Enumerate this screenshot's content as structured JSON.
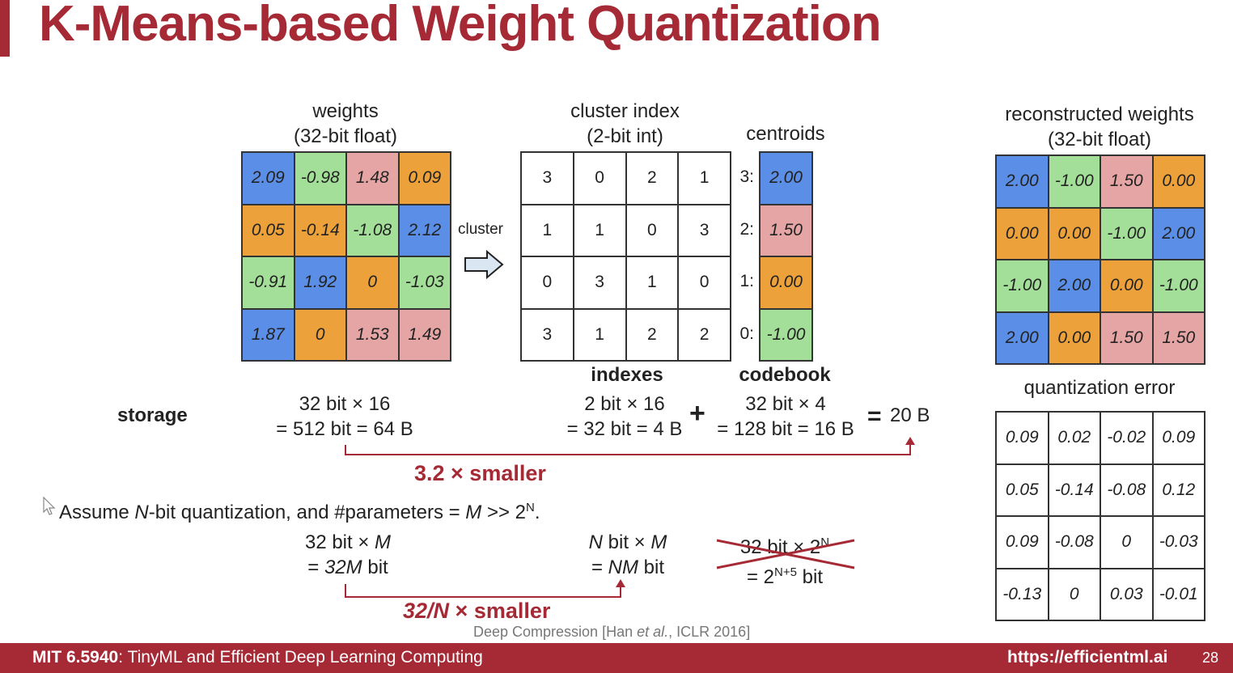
{
  "title": "K-Means-based Weight Quantization",
  "weights": {
    "title_line1": "weights",
    "title_line2": "(32-bit float)",
    "cells": [
      {
        "v": "2.09",
        "c": "blue"
      },
      {
        "v": "-0.98",
        "c": "green"
      },
      {
        "v": "1.48",
        "c": "pink"
      },
      {
        "v": "0.09",
        "c": "orange"
      },
      {
        "v": "0.05",
        "c": "orange"
      },
      {
        "v": "-0.14",
        "c": "orange"
      },
      {
        "v": "-1.08",
        "c": "green"
      },
      {
        "v": "2.12",
        "c": "blue"
      },
      {
        "v": "-0.91",
        "c": "green"
      },
      {
        "v": "1.92",
        "c": "blue"
      },
      {
        "v": "0",
        "c": "orange"
      },
      {
        "v": "-1.03",
        "c": "green"
      },
      {
        "v": "1.87",
        "c": "blue"
      },
      {
        "v": "0",
        "c": "orange"
      },
      {
        "v": "1.53",
        "c": "pink"
      },
      {
        "v": "1.49",
        "c": "pink"
      }
    ]
  },
  "cluster_label": "cluster",
  "cluster_index": {
    "title_line1": "cluster index",
    "title_line2": "(2-bit int)",
    "cells": [
      "3",
      "0",
      "2",
      "1",
      "1",
      "1",
      "0",
      "3",
      "0",
      "3",
      "1",
      "0",
      "3",
      "1",
      "2",
      "2"
    ]
  },
  "centroids": {
    "title": "centroids",
    "items": [
      {
        "key": "3:",
        "v": "2.00",
        "c": "blue"
      },
      {
        "key": "2:",
        "v": "1.50",
        "c": "pink"
      },
      {
        "key": "1:",
        "v": "0.00",
        "c": "orange"
      },
      {
        "key": "0:",
        "v": "-1.00",
        "c": "green"
      }
    ]
  },
  "indexes_label": "indexes",
  "codebook_label": "codebook",
  "reconstructed": {
    "title_line1": "reconstructed weights",
    "title_line2": "(32-bit float)",
    "cells": [
      {
        "v": "2.00",
        "c": "blue"
      },
      {
        "v": "-1.00",
        "c": "green"
      },
      {
        "v": "1.50",
        "c": "pink"
      },
      {
        "v": "0.00",
        "c": "orange"
      },
      {
        "v": "0.00",
        "c": "orange"
      },
      {
        "v": "0.00",
        "c": "orange"
      },
      {
        "v": "-1.00",
        "c": "green"
      },
      {
        "v": "2.00",
        "c": "blue"
      },
      {
        "v": "-1.00",
        "c": "green"
      },
      {
        "v": "2.00",
        "c": "blue"
      },
      {
        "v": "0.00",
        "c": "orange"
      },
      {
        "v": "-1.00",
        "c": "green"
      },
      {
        "v": "2.00",
        "c": "blue"
      },
      {
        "v": "0.00",
        "c": "orange"
      },
      {
        "v": "1.50",
        "c": "pink"
      },
      {
        "v": "1.50",
        "c": "pink"
      }
    ]
  },
  "quant_error": {
    "title": "quantization error",
    "cells": [
      "0.09",
      "0.02",
      "-0.02",
      "0.09",
      "0.05",
      "-0.14",
      "-0.08",
      "0.12",
      "0.09",
      "-0.08",
      "0",
      "-0.03",
      "-0.13",
      "0",
      "0.03",
      "-0.01"
    ]
  },
  "storage": {
    "label": "storage",
    "weights_line1": "32 bit × 16",
    "weights_line2": "= 512 bit = 64 B",
    "indexes_line1": "2 bit × 16",
    "indexes_line2": "= 32 bit = 4 B",
    "plus": "+",
    "codebook_line1": "32 bit × 4",
    "codebook_line2": "= 128 bit = 16 B",
    "equals": "=",
    "total": "20 B",
    "smaller": "3.2 × smaller"
  },
  "assume": {
    "prefix": "Assume ",
    "n": "N",
    "mid": "-bit quantization, and #parameters = ",
    "m": "M",
    "suffix": " >> 2",
    "sup": "N",
    "end": "."
  },
  "general": {
    "a_line1_pre": "32 bit × ",
    "a_line1_it": "M",
    "a_line2_pre": "= ",
    "a_line2_it": "32M",
    "a_line2_post": " bit",
    "b_line1_it1": "N",
    "b_line1_mid": " bit × ",
    "b_line1_it2": "M",
    "b_line2_pre": "= ",
    "b_line2_it": "NM",
    "b_line2_post": " bit",
    "c_line1": "32 bit × 2",
    "c_line1_sup": "N",
    "c_line2": "= 2",
    "c_line2_sup": "N+5",
    "c_line2_post": " bit",
    "smaller_it": "32/N",
    "smaller_rest": " × smaller"
  },
  "citation": {
    "pre": "Deep Compression [Han ",
    "it": "et al.",
    "post": ", ICLR 2016]"
  },
  "footer": {
    "course_bold": "MIT 6.5940",
    "course_rest": ": TinyML and Efficient Deep Learning Computing",
    "url": "https://efficientml.ai",
    "page": "28"
  },
  "colors": {
    "accent": "#a52a35",
    "blue": "#5b8ee6",
    "green": "#a3df98",
    "pink": "#e6a5a5",
    "orange": "#eda13b"
  }
}
